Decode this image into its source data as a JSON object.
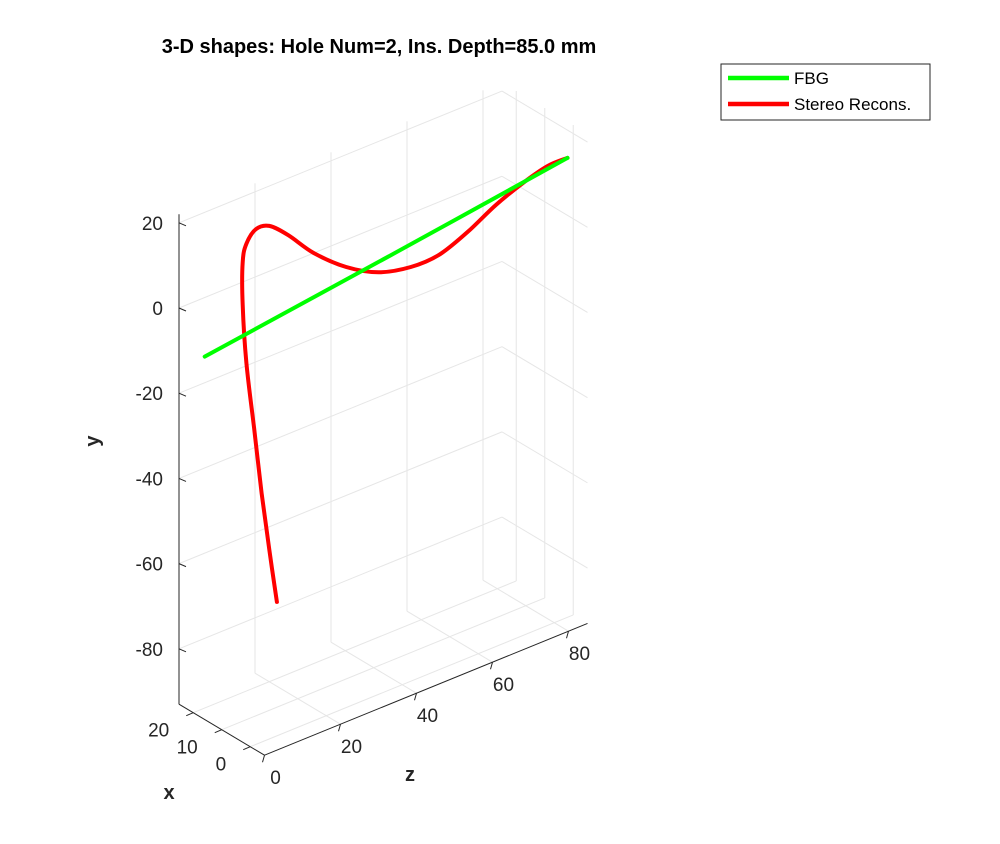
{
  "chart_data": {
    "type": "line",
    "dimensions": "3d",
    "title": "3-D shapes: Hole Num=2, Ins. Depth=85.0 mm",
    "xlabel": "x",
    "ylabel": "y",
    "zlabel": "z",
    "x_ticks": [
      0,
      10,
      20
    ],
    "y_ticks": [
      20,
      0,
      -20,
      -40,
      -60,
      -80
    ],
    "z_ticks": [
      0,
      20,
      40,
      60,
      80
    ],
    "xlim": [
      -5,
      25
    ],
    "ylim": [
      -93,
      22
    ],
    "zlim": [
      0,
      85
    ],
    "grid": true,
    "legend_position": "top-right",
    "series": [
      {
        "name": "FBG",
        "color": "#00ff00",
        "points": [
          {
            "x": 20,
            "y": -10.5,
            "z": 3
          },
          {
            "x": 11,
            "y": 1.5,
            "z": 45
          },
          {
            "x": 2,
            "y": 13.5,
            "z": 85
          }
        ]
      },
      {
        "name": "Stereo Recons.",
        "color": "#ff0000",
        "points": [
          {
            "x": 20,
            "y": -75,
            "z": 22
          },
          {
            "x": 20,
            "y": -62,
            "z": 20
          },
          {
            "x": 20,
            "y": -48,
            "z": 18
          },
          {
            "x": 20,
            "y": -32,
            "z": 16
          },
          {
            "x": 20,
            "y": -16,
            "z": 14
          },
          {
            "x": 20,
            "y": -2,
            "z": 13
          },
          {
            "x": 20,
            "y": 8,
            "z": 13
          },
          {
            "x": 20,
            "y": 12,
            "z": 14
          },
          {
            "x": 20,
            "y": 14.5,
            "z": 16.5
          },
          {
            "x": 20,
            "y": 14,
            "z": 20
          },
          {
            "x": 20,
            "y": 10,
            "z": 25
          },
          {
            "x": 19,
            "y": 4,
            "z": 31
          },
          {
            "x": 17,
            "y": -1,
            "z": 38
          },
          {
            "x": 15,
            "y": -4,
            "z": 45
          },
          {
            "x": 13,
            "y": -4.5,
            "z": 52
          },
          {
            "x": 11,
            "y": -3,
            "z": 58
          },
          {
            "x": 9,
            "y": 1,
            "z": 64
          },
          {
            "x": 7,
            "y": 6,
            "z": 70
          },
          {
            "x": 5,
            "y": 10,
            "z": 76
          },
          {
            "x": 3.5,
            "y": 12.5,
            "z": 81
          },
          {
            "x": 2,
            "y": 13.5,
            "z": 85
          }
        ]
      }
    ]
  }
}
